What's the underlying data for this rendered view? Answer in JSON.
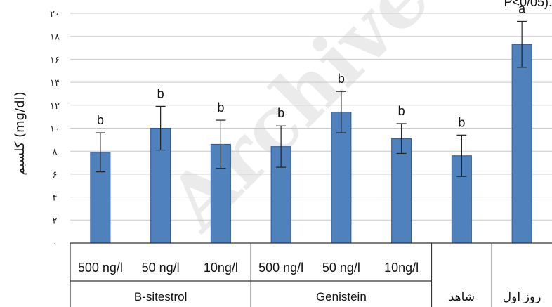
{
  "corner_fragment": "P<0/05).",
  "watermark": "Archive",
  "chart_data": {
    "type": "bar",
    "ylabel": "کلسیم (mg/dl)",
    "ylim": [
      0,
      20
    ],
    "yticks": [
      0,
      2,
      4,
      6,
      8,
      10,
      12,
      14,
      16,
      18,
      20
    ],
    "ytick_labels": [
      "۰",
      "۲",
      "۴",
      "۶",
      "۸",
      "۱۰",
      "۱۲",
      "۱۴",
      "۱۶",
      "۱۸",
      "۲۰"
    ],
    "grid": true,
    "bar_color": "#4f81bd",
    "bar_edge_color": "#2f5597",
    "categories": [
      "500 ng/l",
      "50 ng/l",
      "10ng/l",
      "500 ng/l",
      "50 ng/l",
      "10ng/l",
      "",
      ""
    ],
    "values": [
      7.9,
      10.0,
      8.6,
      8.4,
      11.4,
      9.1,
      7.6,
      17.3
    ],
    "errors": [
      1.7,
      1.9,
      2.1,
      1.8,
      1.8,
      1.3,
      1.8,
      2.0
    ],
    "significance": [
      "b",
      "b",
      "b",
      "b",
      "b",
      "b",
      "b",
      "a"
    ],
    "groups": [
      {
        "label": "B-sitestrol",
        "start": 0,
        "end": 2
      },
      {
        "label": "Genistein",
        "start": 3,
        "end": 5
      },
      {
        "label": "شاهد",
        "start": 6,
        "end": 6
      },
      {
        "label": "روز اول",
        "start": 7,
        "end": 7
      }
    ]
  }
}
